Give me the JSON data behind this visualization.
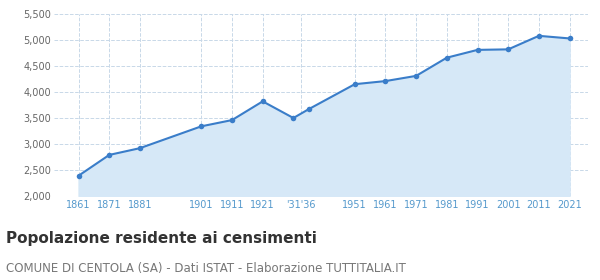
{
  "years": [
    1861,
    1871,
    1881,
    1901,
    1911,
    1921,
    1931,
    1936,
    1951,
    1961,
    1971,
    1981,
    1991,
    2001,
    2011,
    2021
  ],
  "population": [
    2390,
    2790,
    2920,
    3340,
    3460,
    3820,
    3500,
    3670,
    4150,
    4210,
    4310,
    4660,
    4810,
    4820,
    5080,
    5030
  ],
  "tick_positions": [
    1861,
    1871,
    1881,
    1901,
    1911,
    1921,
    1933.5,
    1951,
    1961,
    1971,
    1981,
    1991,
    2001,
    2011,
    2021
  ],
  "tick_labels": [
    "1861",
    "1871",
    "1881",
    "1901",
    "1911",
    "1921",
    "'31'36",
    "1951",
    "1961",
    "1971",
    "1981",
    "1991",
    "2001",
    "2011",
    "2021"
  ],
  "ylim": [
    2000,
    5500
  ],
  "yticks": [
    2000,
    2500,
    3000,
    3500,
    4000,
    4500,
    5000,
    5500
  ],
  "ytick_labels": [
    "2,000",
    "2,500",
    "3,000",
    "3,500",
    "4,000",
    "4,500",
    "5,000",
    "5,500"
  ],
  "line_color": "#3a7dc9",
  "fill_color": "#d6e8f7",
  "marker_color": "#3a7dc9",
  "bg_color": "#ffffff",
  "grid_color": "#c8d8e8",
  "title": "Popolazione residente ai censimenti",
  "subtitle": "COMUNE DI CENTOLA (SA) - Dati ISTAT - Elaborazione TUTTITALIA.IT",
  "title_fontsize": 11,
  "subtitle_fontsize": 8.5,
  "tick_color": "#5599cc"
}
